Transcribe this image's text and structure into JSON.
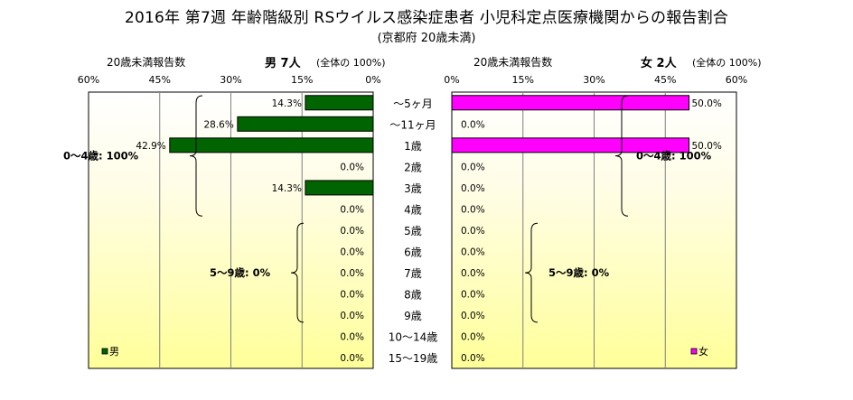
{
  "title": "2016年 第7週 年齢階級別 RSウイルス感染症患者 小児科定点医療機関からの報告割合",
  "subtitle": "(京都府 20歳未満)",
  "male_panel": {
    "header_left": "20歳未満報告数",
    "header_sex": "男 7人",
    "header_note": "(全体の 100%)",
    "legend": "男",
    "ticks": [
      "60%",
      "45%",
      "30%",
      "15%",
      "0%"
    ],
    "brace_labels": [
      "0～4歳: 100%",
      "5～9歳: 0%"
    ]
  },
  "female_panel": {
    "header_left": "20歳未満報告数",
    "header_sex": "女 2人",
    "header_note": "(全体の 100%)",
    "legend": "女",
    "ticks": [
      "0%",
      "15%",
      "30%",
      "45%",
      "60%"
    ],
    "brace_labels": [
      "0～4歳: 100%",
      "5～9歳: 0%"
    ]
  },
  "chart_data": [
    {
      "type": "bar",
      "orientation": "horizontal",
      "title": "男 7人",
      "categories": [
        "～5ヶ月",
        "～11ヶ月",
        "1歳",
        "2歳",
        "3歳",
        "4歳",
        "5歳",
        "6歳",
        "7歳",
        "8歳",
        "9歳",
        "10～14歳",
        "15～19歳"
      ],
      "series": [
        {
          "name": "男",
          "values": [
            14.3,
            28.6,
            42.9,
            0.0,
            14.3,
            0.0,
            0.0,
            0.0,
            0.0,
            0.0,
            0.0,
            0.0,
            0.0
          ],
          "labels": [
            "14.3%",
            "28.6%",
            "42.9%",
            "0.0%",
            "14.3%",
            "0.0%",
            "0.0%",
            "0.0%",
            "0.0%",
            "0.0%",
            "0.0%",
            "0.0%",
            "0.0%"
          ],
          "color": "#006400"
        }
      ],
      "xlim": [
        0,
        60
      ],
      "x_reversed": true,
      "grid": true,
      "legend_position": "bottom-left"
    },
    {
      "type": "bar",
      "orientation": "horizontal",
      "title": "女 2人",
      "categories": [
        "～5ヶ月",
        "～11ヶ月",
        "1歳",
        "2歳",
        "3歳",
        "4歳",
        "5歳",
        "6歳",
        "7歳",
        "8歳",
        "9歳",
        "10～14歳",
        "15～19歳"
      ],
      "series": [
        {
          "name": "女",
          "values": [
            50.0,
            0.0,
            50.0,
            0.0,
            0.0,
            0.0,
            0.0,
            0.0,
            0.0,
            0.0,
            0.0,
            0.0,
            0.0
          ],
          "labels": [
            "50.0%",
            "0.0%",
            "50.0%",
            "0.0%",
            "0.0%",
            "0.0%",
            "0.0%",
            "0.0%",
            "0.0%",
            "0.0%",
            "0.0%",
            "0.0%",
            "0.0%"
          ],
          "color": "#ff00ff"
        }
      ],
      "xlim": [
        0,
        60
      ],
      "x_reversed": false,
      "grid": true,
      "legend_position": "bottom-right"
    }
  ]
}
